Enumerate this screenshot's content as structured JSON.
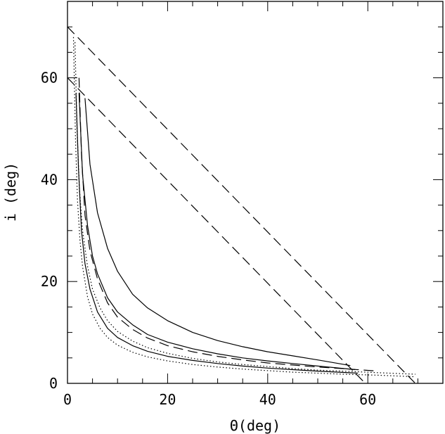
{
  "chart_data": {
    "type": "line",
    "xlabel": "Θ(deg)",
    "ylabel": "i (deg)",
    "xlim": [
      0,
      75
    ],
    "ylim": [
      0,
      75
    ],
    "grid": false,
    "x_ticks": [
      0,
      20,
      40,
      60
    ],
    "y_ticks": [
      0,
      20,
      40,
      60
    ],
    "x_minor_step": 5,
    "y_minor_step": 5,
    "series": [
      {
        "style": "solid",
        "x": [
          3.5,
          4.5,
          6,
          8,
          10,
          13,
          16,
          20,
          25,
          30,
          35,
          40,
          45,
          50,
          56.5
        ],
        "y": [
          56,
          43,
          33.5,
          26.5,
          22,
          17.5,
          14.8,
          12.3,
          10,
          8.4,
          7.2,
          6.2,
          5.4,
          4.6,
          3.5
        ]
      },
      {
        "style": "solid",
        "x": [
          2.3,
          3,
          4,
          5,
          6,
          8,
          10,
          13,
          16,
          20,
          25,
          30,
          35,
          40,
          45,
          50,
          57.5
        ],
        "y": [
          57,
          41,
          31,
          25,
          21.5,
          16.8,
          14,
          11.5,
          9.6,
          8.1,
          6.8,
          5.8,
          5,
          4.4,
          3.9,
          3.4,
          2.7
        ]
      },
      {
        "style": "solid",
        "x": [
          1.7,
          2.2,
          2.8,
          3.5,
          4.5,
          6,
          8,
          10,
          13,
          16,
          20,
          25,
          30,
          35,
          40,
          45,
          50,
          58
        ],
        "y": [
          57,
          42,
          30,
          23.5,
          18.5,
          14,
          10.8,
          9,
          7.4,
          6.3,
          5.3,
          4.5,
          3.9,
          3.4,
          3,
          2.7,
          2.4,
          2
        ]
      },
      {
        "style": "dashed",
        "x": [
          0,
          59.5
        ],
        "y": [
          60,
          0
        ]
      },
      {
        "style": "dashed",
        "x": [
          0,
          69.5
        ],
        "y": [
          70,
          0
        ]
      },
      {
        "style": "dashed",
        "x": [
          2.3,
          2.8,
          3.5,
          4.5,
          6,
          8,
          10,
          13,
          16,
          20,
          25,
          30,
          35,
          40,
          45,
          50,
          55,
          62
        ],
        "y": [
          60,
          45,
          33,
          26,
          20.5,
          15.8,
          13,
          10.6,
          8.9,
          7.4,
          6.2,
          5.3,
          4.6,
          4,
          3.6,
          3.2,
          2.9,
          2.4
        ]
      },
      {
        "style": "dotted",
        "x": [
          1.5,
          1.9,
          2.4,
          3,
          4,
          5,
          6.5,
          8,
          10,
          13,
          16,
          20,
          25,
          30,
          35,
          40,
          45,
          50,
          55,
          62,
          69.5
        ],
        "y": [
          67,
          50,
          38,
          30,
          23,
          18.5,
          14.8,
          12.3,
          10.2,
          8.3,
          7,
          5.9,
          4.9,
          4.2,
          3.7,
          3.3,
          2.9,
          2.6,
          2.4,
          2.1,
          1.8
        ]
      },
      {
        "style": "dotted",
        "x": [
          1.2,
          1.6,
          2,
          2.5,
          3,
          4,
          5,
          6.5,
          8,
          10,
          13,
          16,
          20,
          25,
          30,
          35,
          40,
          45,
          50,
          55,
          62,
          69.5
        ],
        "y": [
          68,
          48,
          36,
          28,
          23,
          17,
          13.6,
          10.8,
          9,
          7.5,
          6.1,
          5.2,
          4.4,
          3.7,
          3.2,
          2.8,
          2.5,
          2.2,
          2,
          1.8,
          1.6,
          1.3
        ]
      }
    ]
  }
}
